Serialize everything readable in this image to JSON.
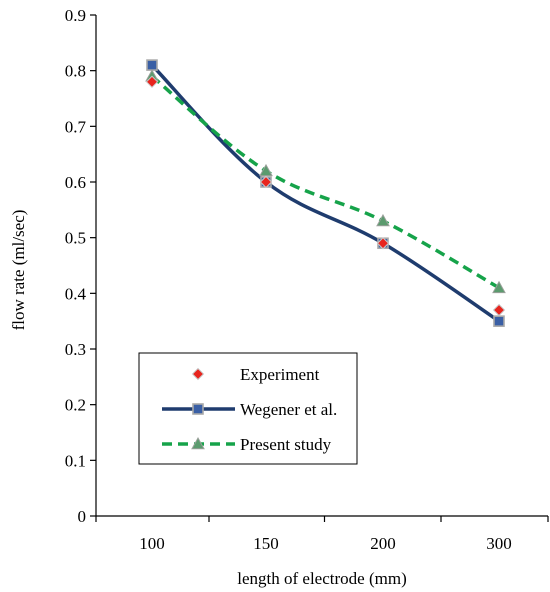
{
  "chart_data": {
    "type": "line",
    "categories": [
      "100",
      "150",
      "200",
      "300"
    ],
    "xlabel": "length of electrode (mm)",
    "ylabel": "flow rate (ml/sec)",
    "ylim": [
      0,
      0.9
    ],
    "yticks": [
      "0",
      "0.1",
      "0.2",
      "0.3",
      "0.4",
      "0.5",
      "0.6",
      "0.7",
      "0.8",
      "0.9"
    ],
    "grid": false,
    "legend_position": "bottom-left",
    "series": [
      {
        "name": "Experiment",
        "values": [
          0.78,
          0.6,
          0.49,
          0.37
        ],
        "style": "markers",
        "marker": "diamond",
        "color": "#e8251e",
        "marker_edge": "#c9c9c9"
      },
      {
        "name": "Wegener et al.",
        "values": [
          0.81,
          0.6,
          0.49,
          0.35
        ],
        "style": "line-solid",
        "marker": "square",
        "color": "#1f3c6e",
        "marker_fill": "#3a5fa5",
        "marker_edge": "#a9a9a9"
      },
      {
        "name": "Present study",
        "values": [
          0.79,
          0.62,
          0.53,
          0.41
        ],
        "style": "line-dashed",
        "marker": "triangle",
        "color": "#16a34a",
        "marker_fill": "#5b9b6e",
        "marker_edge": "#9aa09a"
      }
    ]
  }
}
